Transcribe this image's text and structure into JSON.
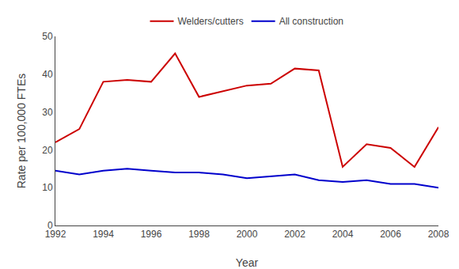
{
  "chart_data": {
    "type": "line",
    "x": [
      1992,
      1993,
      1994,
      1995,
      1996,
      1997,
      1998,
      1999,
      2000,
      2001,
      2002,
      2003,
      2004,
      2005,
      2006,
      2007,
      2008
    ],
    "series": [
      {
        "name": "Welders/cutters",
        "color": "#cc0000",
        "values": [
          22,
          25.5,
          38,
          38.5,
          38,
          45.5,
          34,
          35.5,
          37,
          37.5,
          41.5,
          41,
          15.5,
          21.5,
          20.5,
          15.5,
          26
        ]
      },
      {
        "name": "All construction",
        "color": "#0000cc",
        "values": [
          14.5,
          13.5,
          14.5,
          15,
          14.5,
          14,
          14,
          13.5,
          12.5,
          13,
          13.5,
          12,
          11.5,
          12,
          11,
          11,
          10
        ]
      }
    ],
    "xlabel": "Year",
    "ylabel": "Rate per 100,000 FTEs",
    "xlim": [
      1992,
      2008
    ],
    "ylim": [
      0,
      50
    ],
    "xticks": [
      1992,
      1994,
      1996,
      1998,
      2000,
      2002,
      2004,
      2006,
      2008
    ],
    "yticks": [
      0,
      10,
      20,
      30,
      40,
      50
    ],
    "grid": false,
    "legend": "upper center"
  }
}
